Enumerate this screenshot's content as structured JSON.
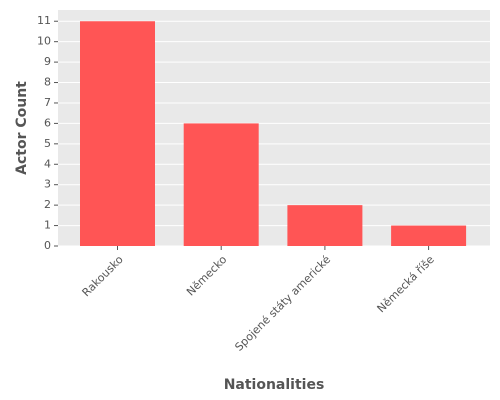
{
  "chart_data": {
    "type": "bar",
    "categories": [
      "Rakousko",
      "Německo",
      "Spojené státy americké",
      "Německá říše"
    ],
    "values": [
      11,
      6,
      2,
      1
    ],
    "color": "#ff5555",
    "xlabel": "Nationalities",
    "ylabel": "Actor Count",
    "ylim": [
      0,
      11.55
    ],
    "yticks": [
      0,
      1,
      2,
      3,
      4,
      5,
      6,
      7,
      8,
      9,
      10,
      11
    ],
    "grid": true
  }
}
